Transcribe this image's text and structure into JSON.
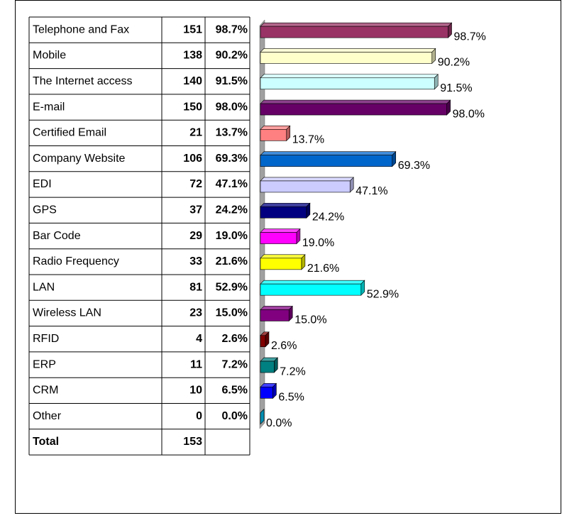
{
  "chart_data": {
    "type": "bar",
    "categories": [
      "Telephone and Fax",
      "Mobile",
      "The Internet access",
      "E-mail",
      "Certified Email",
      "Company Website",
      "EDI",
      "GPS",
      "Bar Code",
      "Radio Frequency",
      "LAN",
      "Wireless LAN",
      "RFID",
      "ERP",
      "CRM",
      "Other"
    ],
    "counts": [
      151,
      138,
      140,
      150,
      21,
      106,
      72,
      37,
      29,
      33,
      81,
      23,
      4,
      11,
      10,
      0
    ],
    "values": [
      98.7,
      90.2,
      91.5,
      98.0,
      13.7,
      69.3,
      47.1,
      24.2,
      19.0,
      21.6,
      52.9,
      15.0,
      2.6,
      7.2,
      6.5,
      0.0
    ],
    "value_labels": [
      "98.7%",
      "90.2%",
      "91.5%",
      "98.0%",
      "13.7%",
      "69.3%",
      "47.1%",
      "24.2%",
      "19.0%",
      "21.6%",
      "52.9%",
      "15.0%",
      "2.6%",
      "7.2%",
      "6.5%",
      "0.0%"
    ],
    "colors": [
      "#993366",
      "#ffffcc",
      "#ccffff",
      "#660066",
      "#ff8080",
      "#0066cc",
      "#ccccff",
      "#000080",
      "#ff00ff",
      "#ffff00",
      "#00ffff",
      "#800080",
      "#800000",
      "#008080",
      "#0000ff",
      "#00ccff"
    ],
    "total_label": "Total",
    "total": 153
  }
}
